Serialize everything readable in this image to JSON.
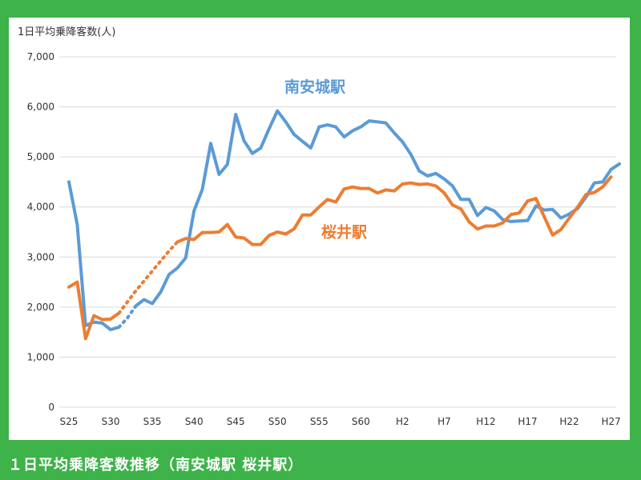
{
  "caption": "１日平均乗降客数推移（南安城駅 桜井駅）",
  "colors": {
    "background": "#3db34a",
    "panel": "#ffffff",
    "grid": "#d9d9d9",
    "axis_text": "#333333"
  },
  "chart_data": {
    "type": "line",
    "title": "",
    "ylabel": "1日平均乗降客数(人)",
    "xlabel": "",
    "ylim": [
      0,
      7000
    ],
    "ytick_step": 1000,
    "yticks": [
      "0",
      "1,000",
      "2,000",
      "3,000",
      "4,000",
      "5,000",
      "6,000",
      "7,000"
    ],
    "grid": true,
    "x_period_index": [
      0,
      66
    ],
    "xticks": [
      {
        "label": "S25",
        "index": 0
      },
      {
        "label": "S30",
        "index": 5
      },
      {
        "label": "S35",
        "index": 10
      },
      {
        "label": "S40",
        "index": 15
      },
      {
        "label": "S45",
        "index": 20
      },
      {
        "label": "S50",
        "index": 25
      },
      {
        "label": "S55",
        "index": 30
      },
      {
        "label": "S60",
        "index": 35
      },
      {
        "label": "H2",
        "index": 40
      },
      {
        "label": "H7",
        "index": 45
      },
      {
        "label": "H12",
        "index": 50
      },
      {
        "label": "H17",
        "index": 55
      },
      {
        "label": "H22",
        "index": 60
      },
      {
        "label": "H27",
        "index": 65
      }
    ],
    "series": [
      {
        "name": "南安城駅",
        "color": "#5b9bd5",
        "label_anchor_index": 29.5,
        "label_anchor_value": 6300,
        "segments": [
          {
            "style": "solid",
            "points": [
              [
                0,
                4500
              ],
              [
                1,
                3650
              ],
              [
                2,
                1630
              ],
              [
                3,
                1700
              ],
              [
                4,
                1680
              ],
              [
                5,
                1550
              ],
              [
                6,
                1600
              ]
            ]
          },
          {
            "style": "dotted",
            "points": [
              [
                6,
                1600
              ],
              [
                7,
                1780
              ],
              [
                8,
                2020
              ]
            ]
          },
          {
            "style": "solid",
            "points": [
              [
                8,
                2020
              ],
              [
                9,
                2150
              ],
              [
                10,
                2070
              ],
              [
                11,
                2300
              ],
              [
                12,
                2650
              ],
              [
                13,
                2780
              ],
              [
                14,
                2980
              ],
              [
                15,
                3920
              ],
              [
                16,
                4350
              ],
              [
                17,
                5270
              ],
              [
                18,
                4650
              ],
              [
                19,
                4850
              ],
              [
                20,
                5850
              ],
              [
                21,
                5320
              ],
              [
                22,
                5070
              ],
              [
                23,
                5180
              ],
              [
                24,
                5560
              ],
              [
                25,
                5920
              ],
              [
                26,
                5700
              ],
              [
                27,
                5450
              ],
              [
                28,
                5310
              ],
              [
                29,
                5180
              ],
              [
                30,
                5600
              ],
              [
                31,
                5640
              ],
              [
                32,
                5600
              ],
              [
                33,
                5400
              ],
              [
                34,
                5520
              ],
              [
                35,
                5600
              ],
              [
                36,
                5720
              ],
              [
                37,
                5700
              ],
              [
                38,
                5680
              ],
              [
                39,
                5480
              ],
              [
                40,
                5300
              ],
              [
                41,
                5050
              ],
              [
                42,
                4720
              ],
              [
                43,
                4620
              ],
              [
                44,
                4670
              ],
              [
                45,
                4560
              ],
              [
                46,
                4420
              ],
              [
                47,
                4150
              ],
              [
                48,
                4150
              ],
              [
                49,
                3830
              ],
              [
                50,
                3990
              ],
              [
                51,
                3920
              ],
              [
                52,
                3750
              ],
              [
                53,
                3710
              ],
              [
                54,
                3720
              ],
              [
                55,
                3730
              ],
              [
                56,
                4020
              ],
              [
                57,
                3940
              ],
              [
                58,
                3950
              ],
              [
                59,
                3780
              ],
              [
                60,
                3860
              ],
              [
                61,
                3970
              ],
              [
                62,
                4200
              ],
              [
                63,
                4480
              ],
              [
                64,
                4500
              ],
              [
                65,
                4750
              ],
              [
                66,
                4860
              ]
            ]
          }
        ]
      },
      {
        "name": "桜井駅",
        "color": "#ed7d31",
        "label_anchor_index": 33,
        "label_anchor_value": 3400,
        "segments": [
          {
            "style": "solid",
            "points": [
              [
                0,
                2400
              ],
              [
                1,
                2500
              ],
              [
                2,
                1370
              ],
              [
                3,
                1830
              ],
              [
                4,
                1750
              ],
              [
                5,
                1760
              ],
              [
                6,
                1880
              ]
            ]
          },
          {
            "style": "dotted",
            "points": [
              [
                6,
                1880
              ],
              [
                7,
                2100
              ],
              [
                8,
                2320
              ],
              [
                9,
                2520
              ],
              [
                10,
                2720
              ],
              [
                11,
                2920
              ],
              [
                12,
                3120
              ],
              [
                13,
                3300
              ]
            ]
          },
          {
            "style": "solid",
            "points": [
              [
                13,
                3300
              ],
              [
                14,
                3370
              ],
              [
                15,
                3350
              ],
              [
                16,
                3490
              ],
              [
                17,
                3490
              ],
              [
                18,
                3500
              ],
              [
                19,
                3650
              ],
              [
                20,
                3400
              ],
              [
                21,
                3380
              ],
              [
                22,
                3250
              ],
              [
                23,
                3250
              ],
              [
                24,
                3430
              ],
              [
                25,
                3500
              ],
              [
                26,
                3460
              ],
              [
                27,
                3560
              ],
              [
                28,
                3840
              ],
              [
                29,
                3840
              ],
              [
                30,
                4000
              ],
              [
                31,
                4150
              ],
              [
                32,
                4100
              ],
              [
                33,
                4360
              ],
              [
                34,
                4400
              ],
              [
                35,
                4370
              ],
              [
                36,
                4370
              ],
              [
                37,
                4280
              ],
              [
                38,
                4340
              ],
              [
                39,
                4320
              ],
              [
                40,
                4460
              ],
              [
                41,
                4480
              ],
              [
                42,
                4450
              ],
              [
                43,
                4460
              ],
              [
                44,
                4420
              ],
              [
                45,
                4280
              ],
              [
                46,
                4040
              ],
              [
                47,
                3960
              ],
              [
                48,
                3700
              ],
              [
                49,
                3560
              ],
              [
                50,
                3620
              ],
              [
                51,
                3620
              ],
              [
                52,
                3680
              ],
              [
                53,
                3850
              ],
              [
                54,
                3880
              ],
              [
                55,
                4120
              ],
              [
                56,
                4170
              ],
              [
                57,
                3800
              ],
              [
                58,
                3440
              ],
              [
                59,
                3550
              ],
              [
                60,
                3780
              ],
              [
                61,
                4000
              ],
              [
                62,
                4250
              ],
              [
                63,
                4290
              ],
              [
                64,
                4400
              ],
              [
                65,
                4600
              ]
            ]
          }
        ]
      }
    ]
  }
}
